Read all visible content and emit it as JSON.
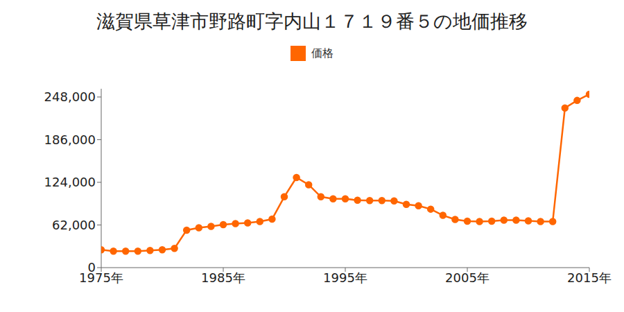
{
  "chart_data": {
    "type": "line",
    "title": "滋賀県草津市野路町字内山１７１９番５の地価推移",
    "x": [
      1975,
      1976,
      1977,
      1978,
      1979,
      1980,
      1981,
      1982,
      1983,
      1984,
      1985,
      1986,
      1987,
      1988,
      1989,
      1990,
      1991,
      1992,
      1993,
      1994,
      1995,
      1996,
      1997,
      1998,
      1999,
      2000,
      2001,
      2002,
      2003,
      2004,
      2005,
      2006,
      2007,
      2008,
      2009,
      2010,
      2011,
      2012,
      2013,
      2014,
      2015
    ],
    "series": [
      {
        "name": "価格",
        "color": "#ff6600",
        "marker": "circle",
        "values": [
          26000,
          24000,
          24000,
          24000,
          25000,
          26000,
          28000,
          54500,
          58000,
          60000,
          62500,
          64000,
          65000,
          67000,
          70500,
          103000,
          131000,
          120500,
          103000,
          100000,
          100000,
          98000,
          97500,
          97500,
          97000,
          92000,
          90000,
          85000,
          76000,
          70000,
          67500,
          67000,
          67500,
          69000,
          69000,
          68000,
          67000,
          67000,
          232000,
          243000,
          252000
        ]
      }
    ],
    "xlim": [
      1975,
      2015
    ],
    "xticks": [
      {
        "value": 1975,
        "label": "1975年"
      },
      {
        "value": 1985,
        "label": "1985年"
      },
      {
        "value": 1995,
        "label": "1995年"
      },
      {
        "value": 2005,
        "label": "2005年"
      },
      {
        "value": 2015,
        "label": "2015年"
      }
    ],
    "ylim": [
      0,
      260000
    ],
    "yticks": [
      0,
      {
        "value": 62000,
        "label": "62,000"
      },
      {
        "value": 124000,
        "label": "124,000"
      },
      {
        "value": 186000,
        "label": "186,000"
      },
      {
        "value": 248000,
        "label": "248,000"
      }
    ],
    "grid": false,
    "legend": "top"
  }
}
